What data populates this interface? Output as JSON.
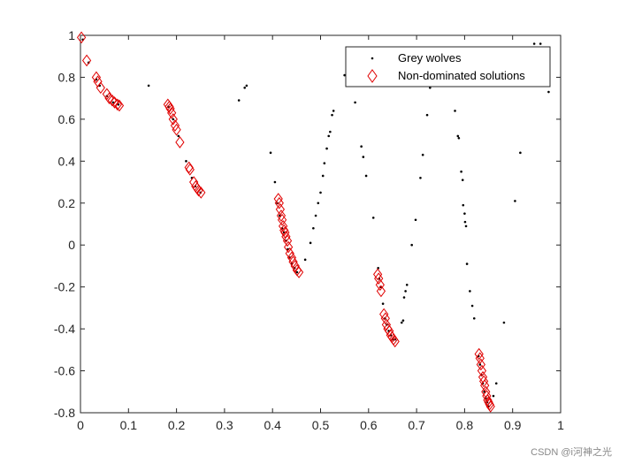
{
  "chart_data": {
    "type": "scatter",
    "title": "",
    "xlabel": "",
    "ylabel": "",
    "xlim": [
      0,
      1
    ],
    "ylim": [
      -0.8,
      1
    ],
    "x_ticks": [
      "0",
      "0.1",
      "0.2",
      "0.3",
      "0.4",
      "0.5",
      "0.6",
      "0.7",
      "0.8",
      "0.9",
      "1"
    ],
    "y_ticks": [
      "-0.8",
      "-0.6",
      "-0.4",
      "-0.2",
      "0",
      "0.2",
      "0.4",
      "0.6",
      "0.8",
      "1"
    ],
    "grid": false,
    "legend_position": "top-right",
    "series": [
      {
        "name": "Grey wolves",
        "marker": "dot",
        "color": "#000000",
        "points": [
          [
            0.005,
            0.98
          ],
          [
            0.017,
            0.87
          ],
          [
            0.033,
            0.79
          ],
          [
            0.04,
            0.76
          ],
          [
            0.055,
            0.71
          ],
          [
            0.068,
            0.68
          ],
          [
            0.079,
            0.67
          ],
          [
            0.142,
            0.76
          ],
          [
            0.183,
            0.66
          ],
          [
            0.193,
            0.6
          ],
          [
            0.204,
            0.52
          ],
          [
            0.22,
            0.4
          ],
          [
            0.232,
            0.32
          ],
          [
            0.239,
            0.28
          ],
          [
            0.25,
            0.25
          ],
          [
            0.33,
            0.69
          ],
          [
            0.342,
            0.75
          ],
          [
            0.346,
            0.76
          ],
          [
            0.396,
            0.44
          ],
          [
            0.405,
            0.3
          ],
          [
            0.41,
            0.2
          ],
          [
            0.415,
            0.14
          ],
          [
            0.42,
            0.08
          ],
          [
            0.424,
            0.06
          ],
          [
            0.428,
            0.02
          ],
          [
            0.432,
            -0.02
          ],
          [
            0.436,
            -0.06
          ],
          [
            0.44,
            -0.09
          ],
          [
            0.446,
            -0.11
          ],
          [
            0.451,
            -0.13
          ],
          [
            0.468,
            -0.07
          ],
          [
            0.479,
            0.01
          ],
          [
            0.485,
            0.08
          ],
          [
            0.49,
            0.14
          ],
          [
            0.495,
            0.2
          ],
          [
            0.5,
            0.25
          ],
          [
            0.505,
            0.33
          ],
          [
            0.508,
            0.39
          ],
          [
            0.513,
            0.46
          ],
          [
            0.517,
            0.52
          ],
          [
            0.52,
            0.54
          ],
          [
            0.524,
            0.62
          ],
          [
            0.527,
            0.64
          ],
          [
            0.55,
            0.81
          ],
          [
            0.572,
            0.68
          ],
          [
            0.585,
            0.47
          ],
          [
            0.589,
            0.42
          ],
          [
            0.595,
            0.33
          ],
          [
            0.61,
            0.13
          ],
          [
            0.62,
            -0.11
          ],
          [
            0.622,
            -0.16
          ],
          [
            0.625,
            -0.2
          ],
          [
            0.63,
            -0.28
          ],
          [
            0.634,
            -0.35
          ],
          [
            0.638,
            -0.38
          ],
          [
            0.642,
            -0.41
          ],
          [
            0.646,
            -0.43
          ],
          [
            0.65,
            -0.45
          ],
          [
            0.655,
            -0.45
          ],
          [
            0.669,
            -0.37
          ],
          [
            0.672,
            -0.36
          ],
          [
            0.674,
            -0.25
          ],
          [
            0.677,
            -0.22
          ],
          [
            0.68,
            -0.19
          ],
          [
            0.69,
            0.0
          ],
          [
            0.698,
            0.12
          ],
          [
            0.708,
            0.32
          ],
          [
            0.713,
            0.43
          ],
          [
            0.722,
            0.62
          ],
          [
            0.745,
            0.8
          ],
          [
            0.728,
            0.75
          ],
          [
            0.78,
            0.64
          ],
          [
            0.786,
            0.52
          ],
          [
            0.788,
            0.51
          ],
          [
            0.793,
            0.35
          ],
          [
            0.796,
            0.31
          ],
          [
            0.797,
            0.19
          ],
          [
            0.8,
            0.15
          ],
          [
            0.801,
            0.11
          ],
          [
            0.803,
            0.09
          ],
          [
            0.805,
            -0.09
          ],
          [
            0.811,
            -0.22
          ],
          [
            0.816,
            -0.29
          ],
          [
            0.82,
            -0.35
          ],
          [
            0.829,
            -0.53
          ],
          [
            0.832,
            -0.57
          ],
          [
            0.835,
            -0.62
          ],
          [
            0.838,
            -0.66
          ],
          [
            0.841,
            -0.7
          ],
          [
            0.844,
            -0.73
          ],
          [
            0.847,
            -0.75
          ],
          [
            0.85,
            -0.77
          ],
          [
            0.86,
            -0.72
          ],
          [
            0.866,
            -0.66
          ],
          [
            0.882,
            -0.37
          ],
          [
            0.905,
            0.21
          ],
          [
            0.916,
            0.44
          ],
          [
            0.945,
            0.96
          ],
          [
            0.958,
            0.96
          ],
          [
            0.975,
            0.73
          ]
        ]
      },
      {
        "name": "Non-dominated solutions",
        "marker": "diamond",
        "color": "#e00000",
        "points": [
          [
            0.002,
            0.99
          ],
          [
            0.013,
            0.88
          ],
          [
            0.033,
            0.8
          ],
          [
            0.036,
            0.78
          ],
          [
            0.042,
            0.75
          ],
          [
            0.055,
            0.72
          ],
          [
            0.06,
            0.7
          ],
          [
            0.066,
            0.69
          ],
          [
            0.071,
            0.68
          ],
          [
            0.077,
            0.67
          ],
          [
            0.081,
            0.665
          ],
          [
            0.182,
            0.67
          ],
          [
            0.185,
            0.66
          ],
          [
            0.187,
            0.65
          ],
          [
            0.19,
            0.63
          ],
          [
            0.193,
            0.6
          ],
          [
            0.197,
            0.57
          ],
          [
            0.2,
            0.55
          ],
          [
            0.207,
            0.49
          ],
          [
            0.226,
            0.37
          ],
          [
            0.228,
            0.36
          ],
          [
            0.236,
            0.3
          ],
          [
            0.24,
            0.28
          ],
          [
            0.243,
            0.27
          ],
          [
            0.246,
            0.26
          ],
          [
            0.251,
            0.25
          ],
          [
            0.412,
            0.22
          ],
          [
            0.414,
            0.2
          ],
          [
            0.416,
            0.17
          ],
          [
            0.418,
            0.14
          ],
          [
            0.42,
            0.12
          ],
          [
            0.422,
            0.09
          ],
          [
            0.424,
            0.07
          ],
          [
            0.426,
            0.06
          ],
          [
            0.428,
            0.04
          ],
          [
            0.431,
            0.02
          ],
          [
            0.433,
            -0.01
          ],
          [
            0.436,
            -0.04
          ],
          [
            0.44,
            -0.06
          ],
          [
            0.443,
            -0.08
          ],
          [
            0.447,
            -0.1
          ],
          [
            0.451,
            -0.12
          ],
          [
            0.455,
            -0.13
          ],
          [
            0.619,
            -0.14
          ],
          [
            0.621,
            -0.16
          ],
          [
            0.624,
            -0.19
          ],
          [
            0.626,
            -0.22
          ],
          [
            0.632,
            -0.33
          ],
          [
            0.635,
            -0.35
          ],
          [
            0.637,
            -0.38
          ],
          [
            0.64,
            -0.4
          ],
          [
            0.643,
            -0.41
          ],
          [
            0.646,
            -0.43
          ],
          [
            0.649,
            -0.44
          ],
          [
            0.652,
            -0.45
          ],
          [
            0.655,
            -0.46
          ],
          [
            0.83,
            -0.52
          ],
          [
            0.832,
            -0.54
          ],
          [
            0.834,
            -0.57
          ],
          [
            0.836,
            -0.6
          ],
          [
            0.838,
            -0.63
          ],
          [
            0.84,
            -0.65
          ],
          [
            0.842,
            -0.67
          ],
          [
            0.844,
            -0.7
          ],
          [
            0.846,
            -0.72
          ],
          [
            0.848,
            -0.74
          ],
          [
            0.85,
            -0.75
          ],
          [
            0.852,
            -0.76
          ],
          [
            0.854,
            -0.77
          ]
        ]
      }
    ]
  },
  "watermark": "CSDN @i河神之光"
}
